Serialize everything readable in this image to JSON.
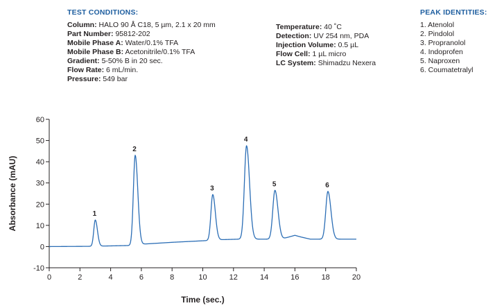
{
  "test_conditions": {
    "heading": "TEST CONDITIONS:",
    "left": [
      {
        "label": "Column:",
        "value": "HALO 90 Å C18, 5 µm, 2.1 x 20 mm"
      },
      {
        "label": "Part Number:",
        "value": "95812-202"
      },
      {
        "label": "Mobile Phase A:",
        "value": "Water/0.1% TFA"
      },
      {
        "label": "Mobile Phase B:",
        "value": "Acetonitrile/0.1% TFA"
      },
      {
        "label": "Gradient:",
        "value": "5-50% B in 20 sec."
      },
      {
        "label": "Flow Rate:",
        "value": "6 mL/min."
      },
      {
        "label": "Pressure:",
        "value": "549 bar"
      }
    ],
    "right": [
      {
        "label": "Temperature:",
        "value": "40 ˚C"
      },
      {
        "label": "Detection:",
        "value": "UV 254 nm, PDA"
      },
      {
        "label": "Injection Volume:",
        "value": "0.5 µL"
      },
      {
        "label": "Flow Cell:",
        "value": "1 µL micro"
      },
      {
        "label": "LC System:",
        "value": "Shimadzu Nexera"
      }
    ]
  },
  "peak_identities": {
    "heading": "PEAK IDENTITIES:",
    "items": [
      "1. Atenolol",
      "2. Pindolol",
      "3. Propranolol",
      "4. Indoprofen",
      "5. Naproxen",
      "6. Coumatetralyl"
    ]
  },
  "colors": {
    "heading": "#1f5fa0",
    "trace": "#2a6db5",
    "text": "#231f20"
  },
  "chart_data": {
    "type": "line",
    "xlabel": "Time (sec.)",
    "ylabel": "Absorbance (mAU)",
    "xlim": [
      0,
      20
    ],
    "ylim": [
      -10,
      60
    ],
    "xticks": [
      0,
      2,
      4,
      6,
      8,
      10,
      12,
      14,
      16,
      18,
      20
    ],
    "yticks": [
      -10,
      0,
      10,
      20,
      30,
      40,
      50,
      60
    ],
    "grid": false,
    "baseline": [
      [
        0,
        0
      ],
      [
        2.5,
        0.1
      ],
      [
        5.3,
        0.5
      ],
      [
        6.2,
        1.2
      ],
      [
        8,
        2.0
      ],
      [
        10.2,
        2.8
      ],
      [
        11.0,
        3.2
      ],
      [
        12.4,
        3.5
      ],
      [
        13.3,
        3.5
      ],
      [
        14.3,
        3.5
      ],
      [
        15.2,
        3.7
      ],
      [
        15.6,
        4.5
      ],
      [
        16.0,
        5.3
      ],
      [
        16.4,
        4.5
      ],
      [
        17.0,
        3.5
      ],
      [
        20,
        3.5
      ]
    ],
    "peaks": [
      {
        "label": "1",
        "x": 3.0,
        "y": 12.5,
        "width": 0.1
      },
      {
        "label": "2",
        "x": 5.6,
        "y": 43.0,
        "width": 0.12
      },
      {
        "label": "3",
        "x": 10.65,
        "y": 24.5,
        "width": 0.12
      },
      {
        "label": "4",
        "x": 12.85,
        "y": 47.5,
        "width": 0.14
      },
      {
        "label": "5",
        "x": 14.7,
        "y": 26.5,
        "width": 0.14
      },
      {
        "label": "6",
        "x": 18.15,
        "y": 26.0,
        "width": 0.14
      }
    ]
  }
}
